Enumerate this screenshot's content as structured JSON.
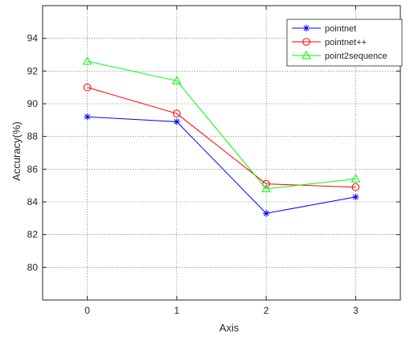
{
  "chart_data": {
    "type": "line",
    "xlabel": "Axis",
    "ylabel": "Accuracy(%)",
    "x": [
      0,
      1,
      2,
      3
    ],
    "xlim": [
      -0.5,
      3.5
    ],
    "ylim": [
      78,
      96
    ],
    "xticks": [
      0,
      1,
      2,
      3
    ],
    "yticks": [
      80,
      82,
      84,
      86,
      88,
      90,
      92,
      94
    ],
    "grid": true,
    "legend_position": "top-right",
    "series": [
      {
        "name": "pointnet",
        "color": "#0000ff",
        "marker": "asterisk",
        "values": [
          89.2,
          88.9,
          83.3,
          84.3
        ]
      },
      {
        "name": "pointnet++",
        "color": "#ff0000",
        "marker": "circle",
        "values": [
          91.0,
          89.4,
          85.1,
          84.9
        ]
      },
      {
        "name": "point2sequence",
        "color": "#00ff00",
        "marker": "triangle",
        "values": [
          92.6,
          91.4,
          84.8,
          85.4
        ]
      }
    ]
  }
}
